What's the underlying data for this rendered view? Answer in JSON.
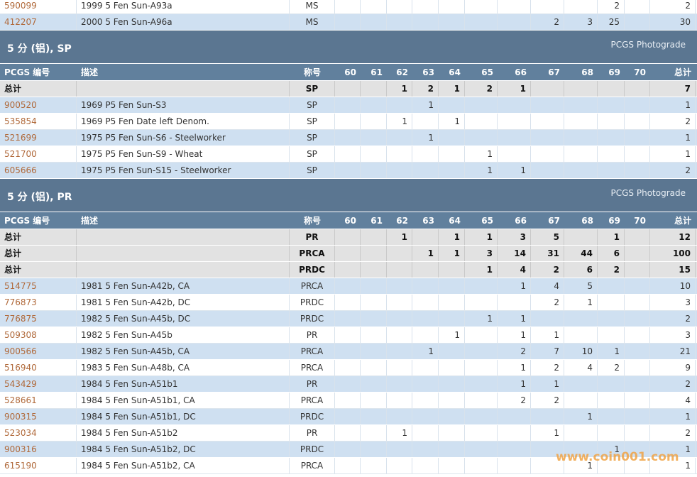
{
  "top_rows": [
    {
      "pcgs": "590099",
      "desc": "1999 5 Fen Sun-A93a",
      "grade": "MS",
      "counts": [
        null,
        null,
        null,
        null,
        null,
        null,
        null,
        null,
        null,
        2,
        null
      ],
      "total": 2
    },
    {
      "pcgs": "412207",
      "desc": "2000 5 Fen Sun-A96a",
      "grade": "MS",
      "counts": [
        null,
        null,
        null,
        null,
        null,
        null,
        null,
        2,
        3,
        25,
        null
      ],
      "total": 30
    }
  ],
  "sections": [
    {
      "title": "5 分 (铝), SP",
      "photograde": "PCGS Photograde",
      "header": [
        "PCGS 编号",
        "描述",
        "称号",
        "60",
        "61",
        "62",
        "63",
        "64",
        "65",
        "66",
        "67",
        "68",
        "69",
        "70",
        "总计"
      ],
      "total_rows": [
        {
          "label": "总计",
          "grade": "SP",
          "counts": [
            null,
            null,
            1,
            2,
            1,
            2,
            1,
            null,
            null,
            null,
            null
          ],
          "total": 7
        }
      ],
      "rows": [
        {
          "pcgs": "900520",
          "desc": "1969 P5 Fen Sun-S3",
          "grade": "SP",
          "counts": [
            null,
            null,
            null,
            1,
            null,
            null,
            null,
            null,
            null,
            null,
            null
          ],
          "total": 1
        },
        {
          "pcgs": "535854",
          "desc": "1969 P5 Fen Date left Denom.",
          "grade": "SP",
          "counts": [
            null,
            null,
            1,
            null,
            1,
            null,
            null,
            null,
            null,
            null,
            null
          ],
          "total": 2
        },
        {
          "pcgs": "521699",
          "desc": "1975 P5 Fen Sun-S6 - Steelworker",
          "grade": "SP",
          "counts": [
            null,
            null,
            null,
            1,
            null,
            null,
            null,
            null,
            null,
            null,
            null
          ],
          "total": 1
        },
        {
          "pcgs": "521700",
          "desc": "1975 P5 Fen Sun-S9 - Wheat",
          "grade": "SP",
          "counts": [
            null,
            null,
            null,
            null,
            null,
            1,
            null,
            null,
            null,
            null,
            null
          ],
          "total": 1
        },
        {
          "pcgs": "605666",
          "desc": "1975 P5 Fen Sun-S15 - Steelworker",
          "grade": "SP",
          "counts": [
            null,
            null,
            null,
            null,
            null,
            1,
            1,
            null,
            null,
            null,
            null
          ],
          "total": 2
        }
      ]
    },
    {
      "title": "5 分 (铝), PR",
      "photograde": "PCGS Photograde",
      "header": [
        "PCGS 编号",
        "描述",
        "称号",
        "60",
        "61",
        "62",
        "63",
        "64",
        "65",
        "66",
        "67",
        "68",
        "69",
        "70",
        "总计"
      ],
      "total_rows": [
        {
          "label": "总计",
          "grade": "PR",
          "counts": [
            null,
            null,
            1,
            null,
            1,
            1,
            3,
            5,
            null,
            1,
            null
          ],
          "total": 12
        },
        {
          "label": "总计",
          "grade": "PRCA",
          "counts": [
            null,
            null,
            null,
            1,
            1,
            3,
            14,
            31,
            44,
            6,
            null
          ],
          "total": 100
        },
        {
          "label": "总计",
          "grade": "PRDC",
          "counts": [
            null,
            null,
            null,
            null,
            null,
            1,
            4,
            2,
            6,
            2,
            null
          ],
          "total": 15
        }
      ],
      "rows": [
        {
          "pcgs": "514775",
          "desc": "1981 5 Fen Sun-A42b, CA",
          "grade": "PRCA",
          "counts": [
            null,
            null,
            null,
            null,
            null,
            null,
            1,
            4,
            5,
            null,
            null
          ],
          "total": 10
        },
        {
          "pcgs": "776873",
          "desc": "1981 5 Fen Sun-A42b, DC",
          "grade": "PRDC",
          "counts": [
            null,
            null,
            null,
            null,
            null,
            null,
            null,
            2,
            1,
            null,
            null
          ],
          "total": 3
        },
        {
          "pcgs": "776875",
          "desc": "1982 5 Fen Sun-A45b, DC",
          "grade": "PRDC",
          "counts": [
            null,
            null,
            null,
            null,
            null,
            1,
            1,
            null,
            null,
            null,
            null
          ],
          "total": 2
        },
        {
          "pcgs": "509308",
          "desc": "1982 5 Fen Sun-A45b",
          "grade": "PR",
          "counts": [
            null,
            null,
            null,
            null,
            1,
            null,
            1,
            1,
            null,
            null,
            null
          ],
          "total": 3
        },
        {
          "pcgs": "900566",
          "desc": "1982 5 Fen Sun-A45b, CA",
          "grade": "PRCA",
          "counts": [
            null,
            null,
            null,
            1,
            null,
            null,
            2,
            7,
            10,
            1,
            null
          ],
          "total": 21
        },
        {
          "pcgs": "516940",
          "desc": "1983 5 Fen Sun-A48b, CA",
          "grade": "PRCA",
          "counts": [
            null,
            null,
            null,
            null,
            null,
            null,
            1,
            2,
            4,
            2,
            null
          ],
          "total": 9
        },
        {
          "pcgs": "543429",
          "desc": "1984 5 Fen Sun-A51b1",
          "grade": "PR",
          "counts": [
            null,
            null,
            null,
            null,
            null,
            null,
            1,
            1,
            null,
            null,
            null
          ],
          "total": 2
        },
        {
          "pcgs": "528661",
          "desc": "1984 5 Fen Sun-A51b1, CA",
          "grade": "PRCA",
          "counts": [
            null,
            null,
            null,
            null,
            null,
            null,
            2,
            2,
            null,
            null,
            null
          ],
          "total": 4
        },
        {
          "pcgs": "900315",
          "desc": "1984 5 Fen Sun-A51b1, DC",
          "grade": "PRDC",
          "counts": [
            null,
            null,
            null,
            null,
            null,
            null,
            null,
            null,
            1,
            null,
            null
          ],
          "total": 1
        },
        {
          "pcgs": "523034",
          "desc": "1984 5 Fen Sun-A51b2",
          "grade": "PR",
          "counts": [
            null,
            null,
            1,
            null,
            null,
            null,
            null,
            1,
            null,
            null,
            null
          ],
          "total": 2
        },
        {
          "pcgs": "900316",
          "desc": "1984 5 Fen Sun-A51b2, DC",
          "grade": "PRDC",
          "counts": [
            null,
            null,
            null,
            null,
            null,
            null,
            null,
            null,
            null,
            1,
            null
          ],
          "total": 1
        },
        {
          "pcgs": "615190",
          "desc": "1984 5 Fen Sun-A51b2, CA",
          "grade": "PRCA",
          "counts": [
            null,
            null,
            null,
            null,
            null,
            null,
            null,
            null,
            1,
            null,
            null
          ],
          "total": 1
        }
      ]
    }
  ],
  "watermark": "www.coin001.com"
}
